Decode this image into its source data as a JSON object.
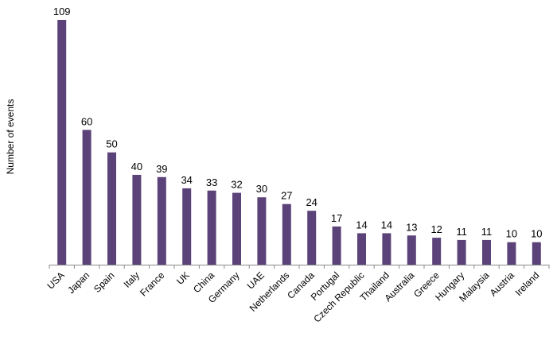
{
  "chart_data": {
    "type": "bar",
    "title": "",
    "xlabel": "",
    "ylabel": "Number of events",
    "ylim": [
      0,
      110
    ],
    "grid": false,
    "legend": "none",
    "bar_color": "#5B4379",
    "categories": [
      "USA",
      "Japan",
      "Spain",
      "Italy",
      "France",
      "UK",
      "China",
      "Germany",
      "UAE",
      "Netherlands",
      "Canada",
      "Portugal",
      "Czech Republic",
      "Thailand",
      "Australia",
      "Greece",
      "Hungary",
      "Malaysia",
      "Austria",
      "Ireland"
    ],
    "values": [
      109,
      60,
      50,
      40,
      39,
      34,
      33,
      32,
      30,
      27,
      24,
      17,
      14,
      14,
      13,
      12,
      11,
      11,
      10,
      10
    ],
    "data_labels": [
      "109",
      "60",
      "50",
      "40",
      "39",
      "34",
      "33",
      "32",
      "30",
      "27",
      "24",
      "17",
      "14",
      "14",
      "13",
      "12",
      "11",
      "11",
      "10",
      "10"
    ]
  }
}
